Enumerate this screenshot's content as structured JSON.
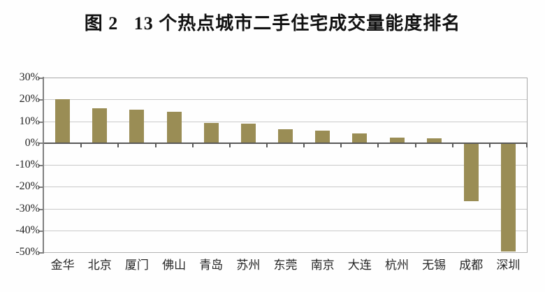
{
  "page": {
    "title": "图 2   13 个热点城市二手住宅成交量能度排名"
  },
  "chart_data": {
    "type": "bar",
    "title": "图 2   13 个热点城市二手住宅成交量能度排名",
    "categories": [
      "金华",
      "北京",
      "厦门",
      "佛山",
      "青岛",
      "苏州",
      "东莞",
      "南京",
      "大连",
      "杭州",
      "无锡",
      "成都",
      "深圳"
    ],
    "values": [
      20,
      16,
      15.3,
      14.3,
      9.3,
      8.9,
      6.3,
      5.6,
      4.5,
      2.6,
      2.2,
      -26.6,
      -49.6
    ],
    "unit": "%",
    "xlabel": "",
    "ylabel": "",
    "ylim": [
      -50,
      30
    ],
    "ytick_step": 10,
    "ytick_labels": [
      "30%",
      "20%",
      "10%",
      "0%",
      "-10%",
      "-20%",
      "-30%",
      "-40%",
      "-50%"
    ],
    "grid": true,
    "legend_position": "none",
    "bar_color": "#9A8D55",
    "gridline_color": "#c9c9c9",
    "zero_line_color": "#595959",
    "axis_color": "#7f7f7f"
  }
}
